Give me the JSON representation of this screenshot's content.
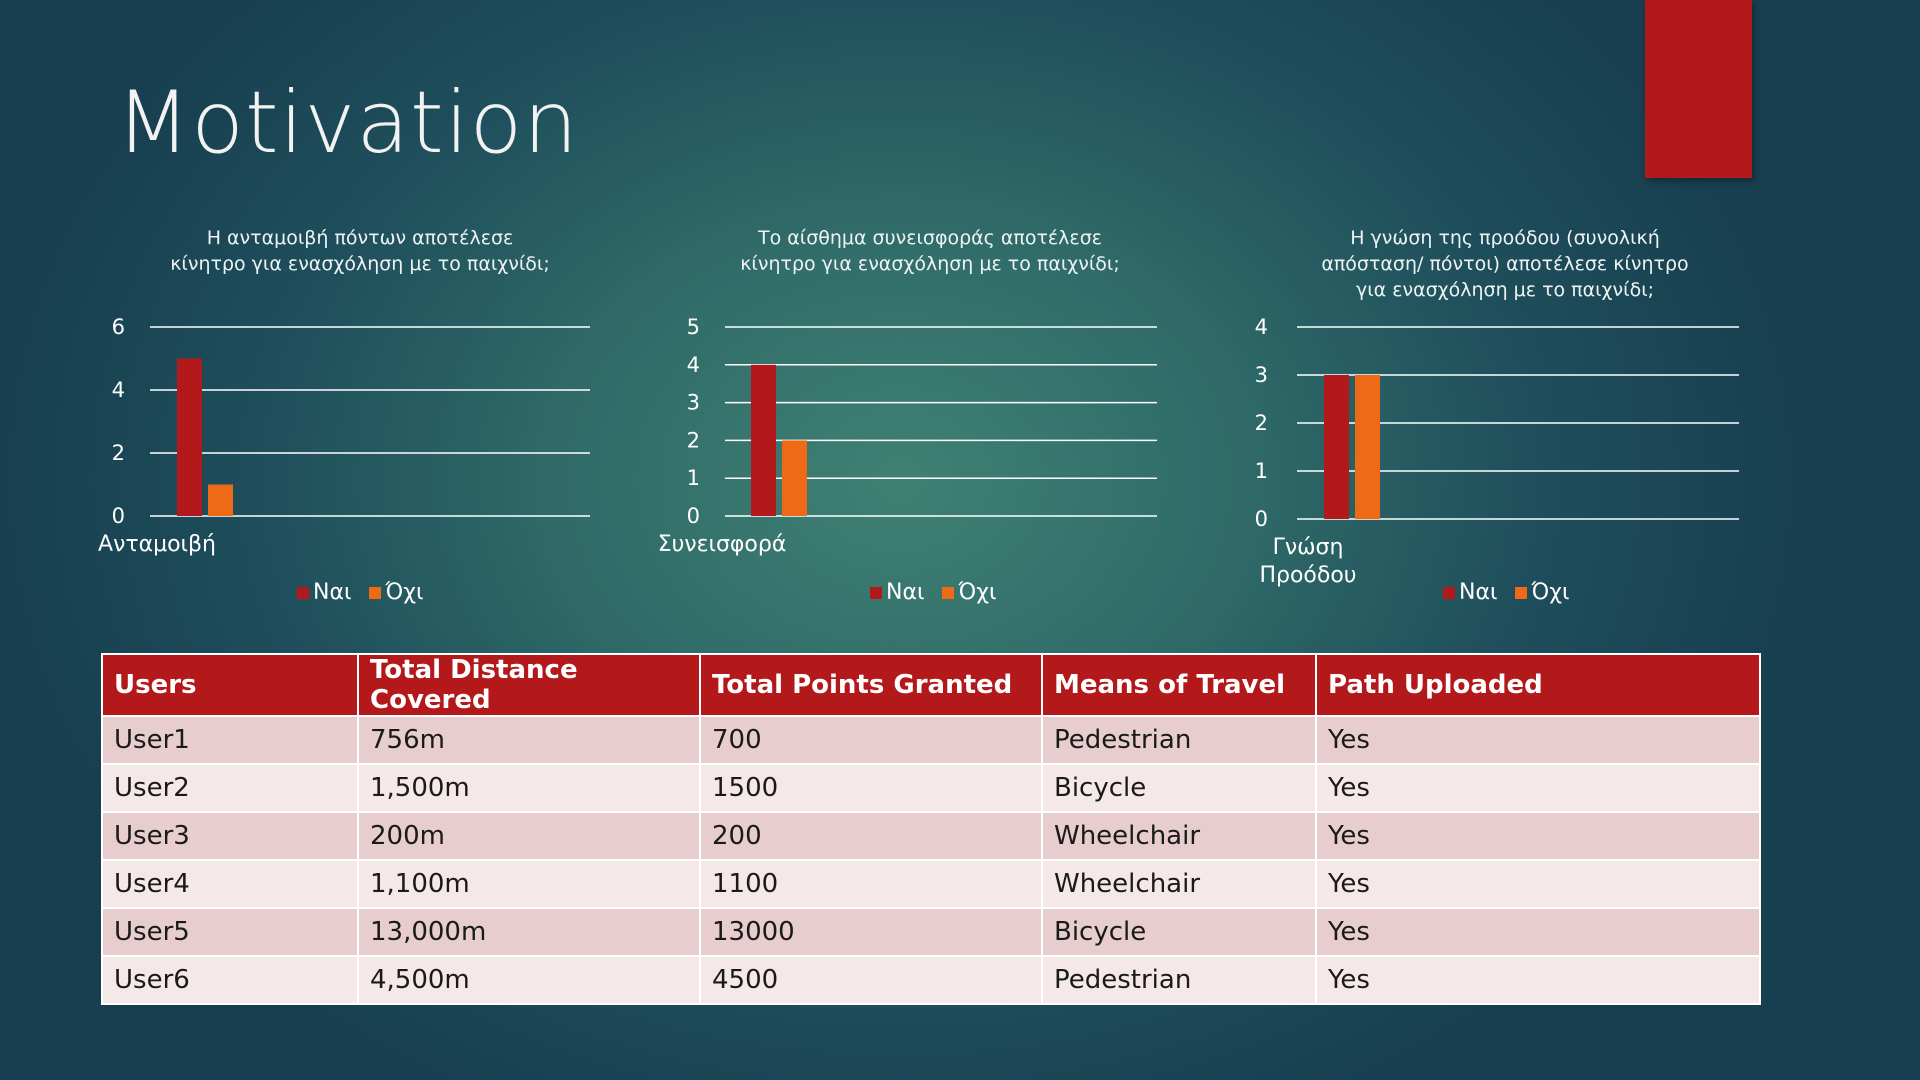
{
  "slide": {
    "title": "Motivation",
    "accent_color": "#b3191b"
  },
  "colors": {
    "yes": "#b3191b",
    "no": "#ee6a16",
    "grid": "#ffffff"
  },
  "chart_data": [
    {
      "type": "bar",
      "title": "Η ανταμοιβή  πόντων αποτέλεσε\nκίνητρο για ενασχόληση με το παιχνίδι;",
      "categories": [
        "Ανταμοιβή"
      ],
      "series": [
        {
          "name": "Ναι",
          "values": [
            5
          ]
        },
        {
          "name": "Όχι",
          "values": [
            1
          ]
        }
      ],
      "ylim": [
        0,
        6
      ],
      "yticks": [
        0,
        2,
        4,
        6
      ],
      "grid": true,
      "legend": "bottom"
    },
    {
      "type": "bar",
      "title": "Το αίσθημα συνεισφοράς αποτέλεσε\nκίνητρο για ενασχόληση με το παιχνίδι;",
      "categories": [
        "Συνεισφορά"
      ],
      "series": [
        {
          "name": "Ναι",
          "values": [
            4
          ]
        },
        {
          "name": "Όχι",
          "values": [
            2
          ]
        }
      ],
      "ylim": [
        0,
        5
      ],
      "yticks": [
        0,
        1,
        2,
        3,
        4,
        5
      ],
      "grid": true,
      "legend": "bottom"
    },
    {
      "type": "bar",
      "title": "Η γνώση της προόδου (συνολική\nαπόσταση/ πόντοι) αποτέλεσε κίνητρο\nγια ενασχόληση με το παιχνίδι;",
      "categories": [
        "Γνώση\nΠροόδου"
      ],
      "series": [
        {
          "name": "Ναι",
          "values": [
            3
          ]
        },
        {
          "name": "Όχι",
          "values": [
            3
          ]
        }
      ],
      "ylim": [
        0,
        4
      ],
      "yticks": [
        0,
        1,
        2,
        3,
        4
      ],
      "grid": true,
      "legend": "bottom"
    }
  ],
  "table": {
    "headers": [
      "Users",
      "Total Distance Covered",
      "Total Points Granted",
      "Means of Travel",
      "Path Uploaded"
    ],
    "rows": [
      [
        "User1",
        "756m",
        "700",
        "Pedestrian",
        "Yes"
      ],
      [
        "User2",
        "1,500m",
        "1500",
        "Bicycle",
        "Yes"
      ],
      [
        "User3",
        "200m",
        "200",
        "Wheelchair",
        "Yes"
      ],
      [
        "User4",
        "1,100m",
        "1100",
        "Wheelchair",
        "Yes"
      ],
      [
        "User5",
        "13,000m",
        "13000",
        "Bicycle",
        "Yes"
      ],
      [
        "User6",
        "4,500m",
        "4500",
        "Pedestrian",
        "Yes"
      ]
    ]
  }
}
